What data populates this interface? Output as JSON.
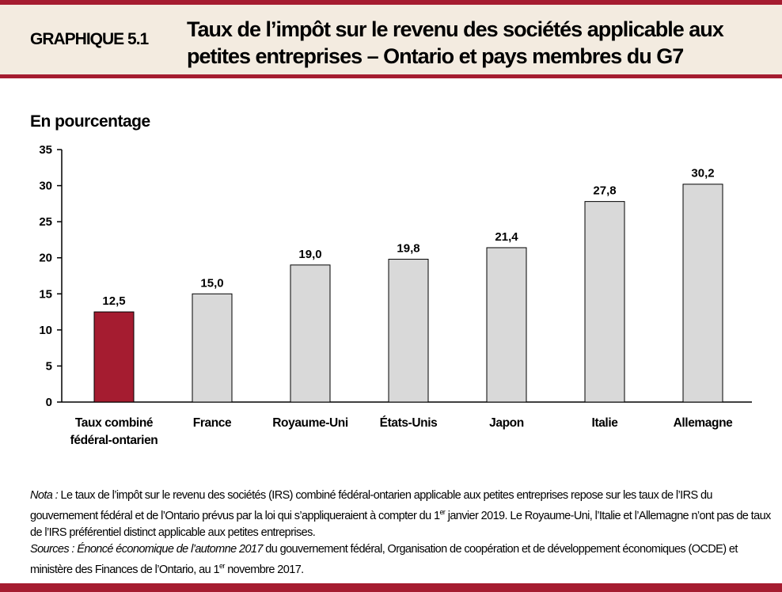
{
  "header": {
    "label": "GRAPHIQUE 5.1",
    "title": "Taux de l’impôt sur le revenu des sociétés applicable aux petites entreprises – Ontario et pays membres du G7"
  },
  "chart_data": {
    "type": "bar",
    "ylabel": "En pourcentage",
    "categories": [
      "Taux combiné fédéral-ontarien",
      "France",
      "Royaume-Uni",
      "États-Unis",
      "Japon",
      "Italie",
      "Allemagne"
    ],
    "category_lines": [
      [
        "Taux combiné",
        "fédéral-ontarien"
      ],
      [
        "France"
      ],
      [
        "Royaume-Uni"
      ],
      [
        "États-Unis"
      ],
      [
        "Japon"
      ],
      [
        "Italie"
      ],
      [
        "Allemagne"
      ]
    ],
    "values": [
      12.5,
      15.0,
      19.0,
      19.8,
      21.4,
      27.8,
      30.2
    ],
    "data_labels": [
      "12,5",
      "15,0",
      "19,0",
      "19,8",
      "21,4",
      "27,8",
      "30,2"
    ],
    "ylim": [
      0,
      35
    ],
    "yticks": [
      0,
      5,
      10,
      15,
      20,
      25,
      30,
      35
    ],
    "grid": false,
    "colors": {
      "highlight": "#a51c30",
      "default": "#d9d9d9"
    }
  },
  "notes": {
    "nota_label": "Nota :",
    "nota_text_1": " Le taux de l’impôt sur le revenu des sociétés (IRS) combiné fédéral-ontarien applicable aux petites entreprises repose sur les taux de l’IRS du gouvernement fédéral et de l’Ontario prévus par la loi qui s’appliqueraient à compter du 1",
    "sup": "er",
    "nota_text_2": " janvier 2019. Le Royaume-Uni, l’Italie et l’Allemagne n’ont pas de taux de l’IRS préférentiel distinct applicable aux petites entreprises.",
    "sources_label": "Sources :",
    "sources_title": " Énoncé économique de l’automne 2017",
    "sources_text_1": " du gouvernement fédéral, Organisation de coopération et de développement économiques (OCDE) et ministère des Finances de l’Ontario, au 1",
    "sources_text_2": " novembre 2017."
  }
}
